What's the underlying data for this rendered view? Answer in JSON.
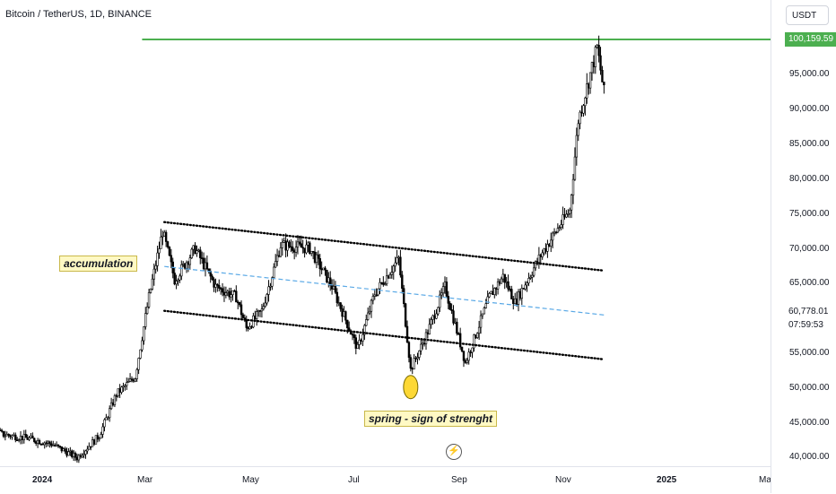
{
  "header": {
    "title": "Bitcoin / TetherUS, 1D, BINANCE"
  },
  "price_axis": {
    "currency": "USDT",
    "ticks": [
      "95,000.00",
      "90,000.00",
      "85,000.00",
      "80,000.00",
      "75,000.00",
      "70,000.00",
      "65,000.00",
      "55,000.00",
      "50,000.00",
      "45,000.00",
      "40,000.00"
    ],
    "high_label": "100,159.59",
    "last_price": "60,778.01",
    "countdown": "07:59:53"
  },
  "time_axis": {
    "ticks": [
      "2024",
      "Mar",
      "May",
      "Jul",
      "Sep",
      "Nov",
      "2025",
      "Mar"
    ]
  },
  "annotations": {
    "accumulation": "accumulation",
    "spring": "spring - sign of strenght"
  },
  "colors": {
    "candles": "#000000",
    "resistance_line": "#4caf50",
    "mid_line": "#5aa9e6",
    "annotation_bg": "#fff9c4",
    "spring_marker": "#fdd835"
  },
  "chart_data": {
    "type": "candlestick",
    "symbol": "Bitcoin / TetherUS, 1D, BINANCE",
    "ylim": [
      39000,
      102000
    ],
    "x_range": [
      "2023-09-01",
      "2025-03-20"
    ],
    "close_path": [
      [
        "2023-09-01",
        43500
      ],
      [
        "2023-10-01",
        42000
      ],
      [
        "2023-11-01",
        43800
      ],
      [
        "2023-11-20",
        46500
      ],
      [
        "2023-12-10",
        43200
      ],
      [
        "2023-12-25",
        42600
      ],
      [
        "2024-01-08",
        41800
      ],
      [
        "2024-01-23",
        39800
      ],
      [
        "2024-02-05",
        43000
      ],
      [
        "2024-02-15",
        49000
      ],
      [
        "2024-02-26",
        51500
      ],
      [
        "2024-03-05",
        63000
      ],
      [
        "2024-03-13",
        72500
      ],
      [
        "2024-03-20",
        65500
      ],
      [
        "2024-04-01",
        70000
      ],
      [
        "2024-04-13",
        64500
      ],
      [
        "2024-04-25",
        63000
      ],
      [
        "2024-05-01",
        58500
      ],
      [
        "2024-05-10",
        61000
      ],
      [
        "2024-05-21",
        70500
      ],
      [
        "2024-06-07",
        70000
      ],
      [
        "2024-06-20",
        64500
      ],
      [
        "2024-07-05",
        55500
      ],
      [
        "2024-07-15",
        63500
      ],
      [
        "2024-07-29",
        68500
      ],
      [
        "2024-08-05",
        52500
      ],
      [
        "2024-08-15",
        58000
      ],
      [
        "2024-08-25",
        64500
      ],
      [
        "2024-09-06",
        53500
      ],
      [
        "2024-09-20",
        63000
      ],
      [
        "2024-09-28",
        66000
      ],
      [
        "2024-10-05",
        62200
      ],
      [
        "2024-10-20",
        69000
      ],
      [
        "2024-10-29",
        72500
      ],
      [
        "2024-11-06",
        75500
      ],
      [
        "2024-11-11",
        88500
      ],
      [
        "2024-11-22",
        99000
      ],
      [
        "2024-11-26",
        92500
      ]
    ],
    "horizontal_lines": [
      {
        "price": 100159.59,
        "from": "2024-03-01"
      }
    ],
    "trendlines": [
      {
        "style": "dotted",
        "points": [
          [
            "2024-03-14",
            73800
          ],
          [
            "2024-11-26",
            66800
          ]
        ]
      },
      {
        "style": "dotted",
        "points": [
          [
            "2024-03-14",
            61000
          ],
          [
            "2024-11-26",
            54000
          ]
        ]
      },
      {
        "style": "dashed",
        "points": [
          [
            "2024-03-14",
            67400
          ],
          [
            "2024-11-26",
            60400
          ]
        ]
      }
    ],
    "markers": [
      {
        "type": "circle",
        "date": "2024-08-05",
        "price": 50000
      }
    ]
  }
}
